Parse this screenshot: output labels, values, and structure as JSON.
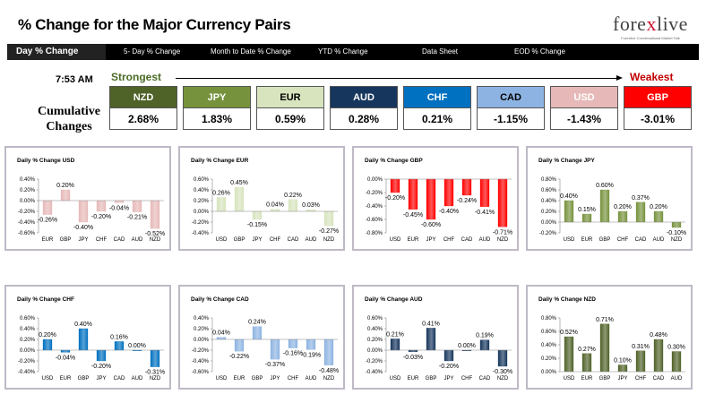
{
  "header": {
    "title": "% Change for the Major Currency Pairs",
    "logo_text_pre": "fore",
    "logo_text_x": "x",
    "logo_text_post": "live",
    "logo_tagline": "Forexlive Conversational Market Talk"
  },
  "nav": {
    "tabs": [
      {
        "label": "Day % Change",
        "active": true
      },
      {
        "label": "5- Day % Change",
        "active": false
      },
      {
        "label": "Month to Date % Change",
        "active": false
      },
      {
        "label": "YTD % Change",
        "active": false
      },
      {
        "label": "Data Sheet",
        "active": false
      },
      {
        "label": "EOD % Change",
        "active": false
      }
    ]
  },
  "summary": {
    "time": "7:53 AM",
    "strongest_label": "Strongest",
    "weakest_label": "Weakest",
    "cumulative_label_1": "Cumulative",
    "cumulative_label_2": "Changes",
    "pairs": [
      {
        "name": "NZD",
        "value": "2.68%",
        "bg": "#4f6228",
        "fg": "#ffffff"
      },
      {
        "name": "JPY",
        "value": "1.83%",
        "bg": "#76923c",
        "fg": "#ffffff"
      },
      {
        "name": "EUR",
        "value": "0.59%",
        "bg": "#d7e4bd",
        "fg": "#000000"
      },
      {
        "name": "AUD",
        "value": "0.28%",
        "bg": "#17365d",
        "fg": "#ffffff"
      },
      {
        "name": "CHF",
        "value": "0.21%",
        "bg": "#0070c0",
        "fg": "#ffffff"
      },
      {
        "name": "CAD",
        "value": "-1.15%",
        "bg": "#8db3e2",
        "fg": "#000000"
      },
      {
        "name": "USD",
        "value": "-1.43%",
        "bg": "#e6b9b8",
        "fg": "#ffffff"
      },
      {
        "name": "GBP",
        "value": "-3.01%",
        "bg": "#ff0000",
        "fg": "#ffffff"
      }
    ]
  },
  "chart_data": [
    {
      "type": "bar",
      "title": "Daily % Change USD",
      "categories": [
        "EUR",
        "GBP",
        "JPY",
        "CHF",
        "CAD",
        "AUD",
        "NZD"
      ],
      "values": [
        -0.26,
        0.2,
        -0.4,
        -0.2,
        -0.04,
        -0.21,
        -0.52
      ],
      "labels": [
        "-0.26%",
        "0.20%",
        "-0.40%",
        "-0.20%",
        "-0.04%",
        "-0.21%",
        "-0.52%"
      ],
      "ylim": [
        -0.6,
        0.4
      ],
      "ticks": [
        -0.6,
        -0.4,
        -0.2,
        0.0,
        0.2,
        0.4
      ],
      "tick_labels": [
        "-0.60%",
        "-0.40%",
        "-0.20%",
        "0.00%",
        "0.20%",
        "0.40%"
      ],
      "color": "#e6b9b8"
    },
    {
      "type": "bar",
      "title": "Daily % Change EUR",
      "categories": [
        "USD",
        "GBP",
        "JPY",
        "CHF",
        "CAD",
        "AUD",
        "NZD"
      ],
      "values": [
        0.26,
        0.45,
        -0.15,
        0.04,
        0.22,
        0.03,
        -0.27
      ],
      "labels": [
        "0.26%",
        "0.45%",
        "-0.15%",
        "0.04%",
        "0.22%",
        "0.03%",
        "-0.27%"
      ],
      "ylim": [
        -0.4,
        0.6
      ],
      "ticks": [
        -0.4,
        -0.2,
        0.0,
        0.2,
        0.4,
        0.6
      ],
      "tick_labels": [
        "-0.40%",
        "-0.20%",
        "0.00%",
        "0.20%",
        "0.40%",
        "0.60%"
      ],
      "color": "#d7e4bd"
    },
    {
      "type": "bar",
      "title": "Daily % Change GBP",
      "categories": [
        "USD",
        "EUR",
        "JPY",
        "CHF",
        "CAD",
        "AUD",
        "NZD"
      ],
      "values": [
        -0.2,
        -0.45,
        -0.6,
        -0.4,
        -0.24,
        -0.41,
        -0.71
      ],
      "labels": [
        "-0.20%",
        "-0.45%",
        "-0.60%",
        "-0.40%",
        "-0.24%",
        "-0.41%",
        "-0.71%"
      ],
      "ylim": [
        -0.8,
        0.0
      ],
      "ticks": [
        -0.8,
        -0.6,
        -0.4,
        -0.2,
        0.0
      ],
      "tick_labels": [
        "-0.80%",
        "-0.60%",
        "-0.40%",
        "-0.20%",
        "0.00%"
      ],
      "color": "#ff0000"
    },
    {
      "type": "bar",
      "title": "Daily % Change JPY",
      "categories": [
        "USD",
        "EUR",
        "GBP",
        "CHF",
        "CAD",
        "AUD",
        "NZD"
      ],
      "values": [
        0.4,
        0.15,
        0.6,
        0.2,
        0.37,
        0.2,
        -0.1
      ],
      "labels": [
        "0.40%",
        "0.15%",
        "0.60%",
        "0.20%",
        "0.37%",
        "0.20%",
        "-0.10%"
      ],
      "ylim": [
        -0.2,
        0.8
      ],
      "ticks": [
        -0.2,
        0.0,
        0.2,
        0.4,
        0.6,
        0.8
      ],
      "tick_labels": [
        "-0.20%",
        "0.00%",
        "0.20%",
        "0.40%",
        "0.60%",
        "0.80%"
      ],
      "color": "#76923c"
    },
    {
      "type": "bar",
      "title": "Daily % Change CHF",
      "categories": [
        "USD",
        "EUR",
        "GBP",
        "JPY",
        "CAD",
        "AUD",
        "NZD"
      ],
      "values": [
        0.2,
        -0.04,
        0.4,
        -0.2,
        0.16,
        0.0,
        -0.31
      ],
      "labels": [
        "0.20%",
        "-0.04%",
        "0.40%",
        "-0.20%",
        "0.16%",
        "0.00%",
        "-0.31%"
      ],
      "ylim": [
        -0.4,
        0.6
      ],
      "ticks": [
        -0.4,
        -0.2,
        0.0,
        0.2,
        0.4,
        0.6
      ],
      "tick_labels": [
        "-0.40%",
        "-0.20%",
        "0.00%",
        "0.20%",
        "0.40%",
        "0.60%"
      ],
      "color": "#0070c0"
    },
    {
      "type": "bar",
      "title": "Daily % Change CAD",
      "categories": [
        "USD",
        "EUR",
        "GBP",
        "JPY",
        "CHF",
        "AUD",
        "NZD"
      ],
      "values": [
        0.04,
        -0.22,
        0.24,
        -0.37,
        -0.16,
        -0.19,
        -0.48
      ],
      "labels": [
        "0.04%",
        "-0.22%",
        "0.24%",
        "-0.37%",
        "-0.16%",
        "-0.19%",
        "-0.48%"
      ],
      "ylim": [
        -0.6,
        0.4
      ],
      "ticks": [
        -0.6,
        -0.4,
        -0.2,
        0.0,
        0.2,
        0.4
      ],
      "tick_labels": [
        "-0.60%",
        "-0.40%",
        "-0.20%",
        "0.00%",
        "0.20%",
        "0.40%"
      ],
      "color": "#8db3e2"
    },
    {
      "type": "bar",
      "title": "Daily % Change AUD",
      "categories": [
        "USD",
        "EUR",
        "GBP",
        "JPY",
        "CHF",
        "CAD",
        "NZD"
      ],
      "values": [
        0.21,
        -0.03,
        0.41,
        -0.2,
        0.0,
        0.19,
        -0.3
      ],
      "labels": [
        "0.21%",
        "-0.03%",
        "0.41%",
        "-0.20%",
        "0.00%",
        "0.19%",
        "-0.30%"
      ],
      "ylim": [
        -0.4,
        0.6
      ],
      "ticks": [
        -0.4,
        -0.2,
        0.0,
        0.2,
        0.4,
        0.6
      ],
      "tick_labels": [
        "-0.40%",
        "-0.20%",
        "0.00%",
        "0.20%",
        "0.40%",
        "0.60%"
      ],
      "color": "#17365d"
    },
    {
      "type": "bar",
      "title": "Daily % Change NZD",
      "categories": [
        "USD",
        "EUR",
        "GBP",
        "JPY",
        "CHF",
        "CAD",
        "AUD"
      ],
      "values": [
        0.52,
        0.27,
        0.71,
        0.1,
        0.31,
        0.48,
        0.3
      ],
      "labels": [
        "0.52%",
        "0.27%",
        "0.71%",
        "0.10%",
        "0.31%",
        "0.48%",
        "0.30%"
      ],
      "ylim": [
        0.0,
        0.8
      ],
      "ticks": [
        0.0,
        0.2,
        0.4,
        0.6,
        0.8
      ],
      "tick_labels": [
        "0.00%",
        "0.20%",
        "0.40%",
        "0.60%",
        "0.80%"
      ],
      "color": "#4f6228"
    }
  ]
}
